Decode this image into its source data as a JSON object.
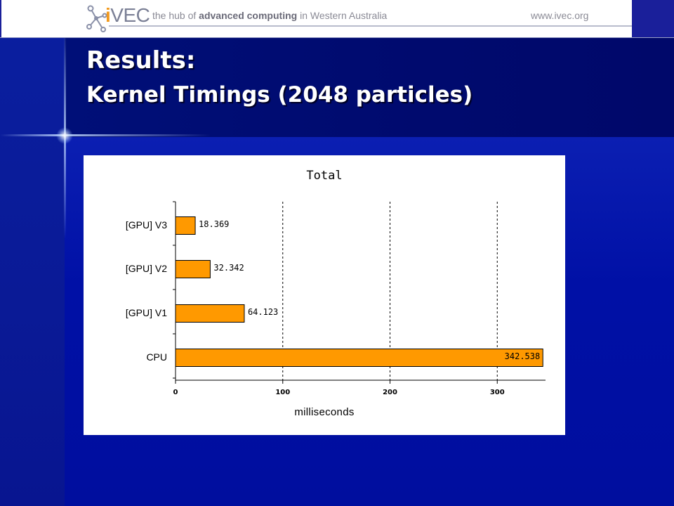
{
  "header": {
    "logo_i": "i",
    "logo_rest": "VEC",
    "tagline_pre": "the hub of ",
    "tagline_bold": "advanced computing",
    "tagline_post": " in Western Australia",
    "url": "www.ivec.org"
  },
  "slide": {
    "title": "Results:",
    "subtitle": "Kernel Timings (2048 particles)"
  },
  "colors": {
    "bar_fill": "#ff9900",
    "bar_stroke": "#000000",
    "accent": "#f29a1e"
  },
  "chart_data": {
    "type": "bar",
    "orientation": "horizontal",
    "title": "Total",
    "xlabel": "milliseconds",
    "ylabel": "",
    "categories": [
      "[GPU] V3",
      "[GPU] V2",
      "[GPU] V1",
      "CPU"
    ],
    "values": [
      18.369,
      32.342,
      64.123,
      342.538
    ],
    "value_labels": [
      "18.369",
      "32.342",
      "64.123",
      "342.538"
    ],
    "xlim": [
      0,
      345
    ],
    "xticks": [
      0,
      100,
      200,
      300
    ],
    "grid": "dashed vertical",
    "legend": "none"
  }
}
